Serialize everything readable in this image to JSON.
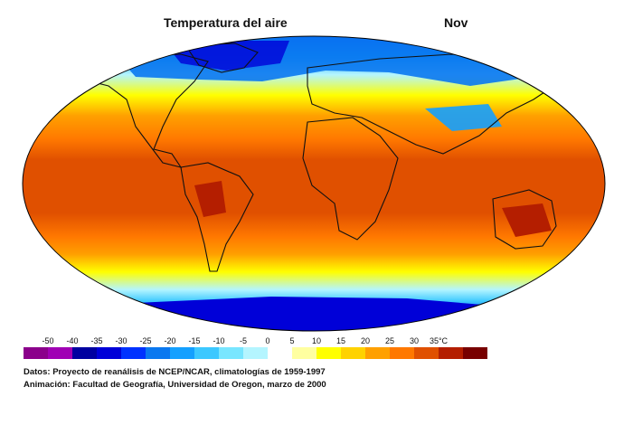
{
  "map": {
    "title": "Temperatura del aire",
    "month": "Nov"
  },
  "legend": {
    "unit": "°C",
    "ticks": [
      "-50",
      "-40",
      "-35",
      "-30",
      "-25",
      "-20",
      "-15",
      "-10",
      "-5",
      "0",
      "5",
      "10",
      "15",
      "20",
      "25",
      "30",
      "35°C"
    ],
    "colors": [
      "#8b008b",
      "#a000b4",
      "#0000a0",
      "#0000d8",
      "#0032ff",
      "#0a78f0",
      "#14a0ff",
      "#3cc8ff",
      "#78e6ff",
      "#b4f5ff",
      "#ffffff",
      "#ffffa0",
      "#ffff00",
      "#ffd200",
      "#ffa000",
      "#ff7800",
      "#e05000",
      "#b41e00",
      "#780000"
    ]
  },
  "credits": {
    "data": "Datos: Proyecto de reanálisis de NCEP/NCAR, climatologías de 1959-1997",
    "animation": "Animación: Facultad de Geografía, Universidad de Oregon, marzo de 2000"
  }
}
